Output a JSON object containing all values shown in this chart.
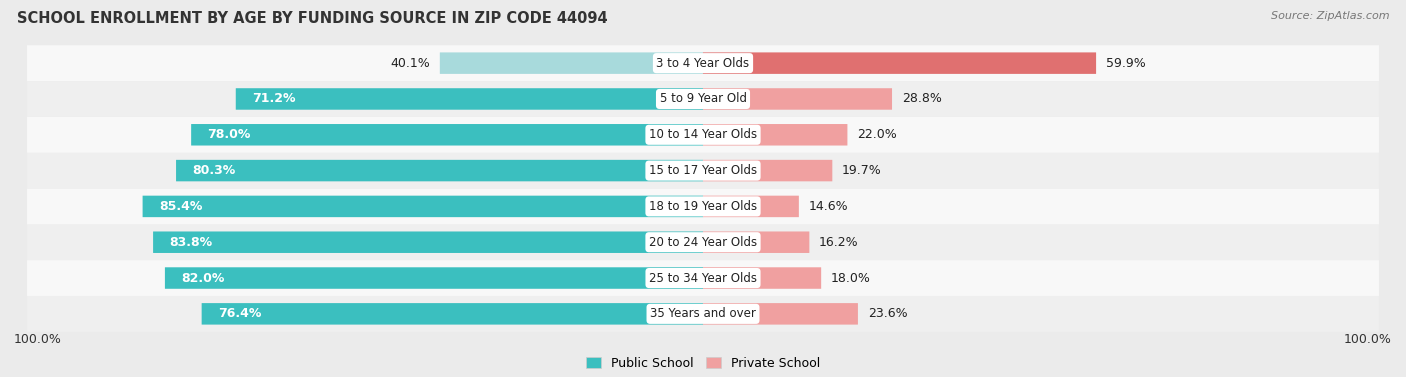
{
  "title": "SCHOOL ENROLLMENT BY AGE BY FUNDING SOURCE IN ZIP CODE 44094",
  "source": "Source: ZipAtlas.com",
  "categories": [
    "3 to 4 Year Olds",
    "5 to 9 Year Old",
    "10 to 14 Year Olds",
    "15 to 17 Year Olds",
    "18 to 19 Year Olds",
    "20 to 24 Year Olds",
    "25 to 34 Year Olds",
    "35 Years and over"
  ],
  "public_pct": [
    40.1,
    71.2,
    78.0,
    80.3,
    85.4,
    83.8,
    82.0,
    76.4
  ],
  "private_pct": [
    59.9,
    28.8,
    22.0,
    19.7,
    14.6,
    16.2,
    18.0,
    23.6
  ],
  "public_color_light": "#A8DADC",
  "public_color_dark": "#3BBFBF",
  "private_color": "#E07070",
  "private_color_light": "#F0A0A0",
  "public_label": "Public School",
  "private_label": "Private School",
  "bg_color": "#EBEBEB",
  "row_colors": [
    "#F5F5F5",
    "#EAEAEA"
  ],
  "bar_height": 0.58,
  "label_fontsize": 9.0,
  "title_fontsize": 10.5,
  "source_fontsize": 8.0,
  "legend_fontsize": 9.0
}
